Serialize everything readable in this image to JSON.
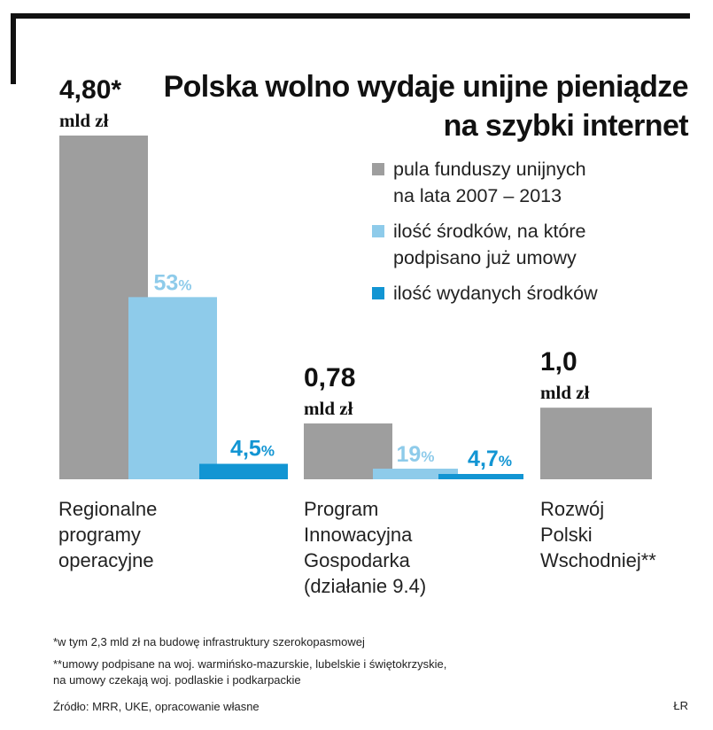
{
  "title_lines": [
    "Polska wolno wydaje unijne pieniądze",
    "na szybki internet"
  ],
  "legend": [
    {
      "label_line1": "pula funduszy unijnych",
      "label_line2": "na lata 2007 – 2013",
      "color": "#9e9e9e"
    },
    {
      "label_line1": "ilość środków, na które",
      "label_line2": "podpisano już umowy",
      "color": "#8ecbea"
    },
    {
      "label_line1": "ilość wydanych środków",
      "label_line2": "",
      "color": "#1295d3"
    }
  ],
  "chart_data": {
    "type": "bar",
    "title": "Polska wolno wydaje unijne pieniądze na szybki internet",
    "series_names": [
      "pula funduszy unijnych na lata 2007 – 2013",
      "ilość środków, na które podpisano już umowy",
      "ilość wydanych środków"
    ],
    "colors": [
      "#9e9e9e",
      "#8ecbea",
      "#1295d3"
    ],
    "unit": "mld zł",
    "ylim": [
      0,
      4.8
    ],
    "categories": [
      {
        "label_lines": [
          "Regionalne",
          "programy",
          "operacyjne"
        ],
        "pool": 4.8,
        "pool_value_text": "4,80*",
        "pool_unit_text": "mld zł",
        "signed_pct": 53,
        "signed_text": "53",
        "spent_pct": 4.5,
        "spent_text": "4,5"
      },
      {
        "label_lines": [
          "Program",
          "Innowacyjna",
          "Gospodarka",
          "(działanie 9.4)"
        ],
        "pool": 0.78,
        "pool_value_text": "0,78",
        "pool_unit_text": "mld zł",
        "signed_pct": 19,
        "signed_text": "19",
        "spent_pct": 4.7,
        "spent_text": "4,7"
      },
      {
        "label_lines": [
          "Rozwój",
          "Polski",
          "Wschodniej**"
        ],
        "pool": 1.0,
        "pool_value_text": "1,0",
        "pool_unit_text": "mld zł",
        "signed_pct": null,
        "signed_text": "",
        "spent_pct": null,
        "spent_text": ""
      }
    ],
    "percent_sign": "%"
  },
  "footnotes": [
    "*w tym 2,3 mld zł na budowę infrastruktury szerokopasmowej",
    "**umowy podpisane na woj. warmińsko-mazurskie, lubelskie i świętokrzyskie,",
    "na umowy czekają woj. podlaskie i podkarpackie",
    "Źródło: MRR, UKE, opracowanie własne"
  ],
  "credit": "ŁR"
}
